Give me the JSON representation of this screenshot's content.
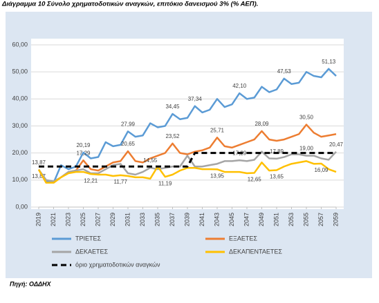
{
  "chart_data": {
    "type": "line",
    "title": "Διάγραμμα 10 Σύνολο χρηματοδοτικών αναγκών, επιτόκιο δανεισμού 3% (% ΑΕΠ).",
    "source": "Πηγή: ΟΔΔΗΧ",
    "x": [
      2019,
      2020,
      2021,
      2022,
      2023,
      2024,
      2025,
      2026,
      2027,
      2028,
      2029,
      2030,
      2031,
      2032,
      2033,
      2034,
      2035,
      2036,
      2037,
      2038,
      2039,
      2040,
      2041,
      2042,
      2043,
      2044,
      2045,
      2046,
      2047,
      2048,
      2049,
      2050,
      2051,
      2052,
      2053,
      2054,
      2055,
      2056,
      2057,
      2058,
      2059
    ],
    "xlim": [
      2019,
      2059
    ],
    "xticks": [
      2019,
      2021,
      2023,
      2025,
      2027,
      2029,
      2031,
      2033,
      2035,
      2037,
      2039,
      2041,
      2043,
      2045,
      2047,
      2049,
      2051,
      2053,
      2055,
      2057,
      2059
    ],
    "ylim": [
      0,
      60
    ],
    "yticks": [
      {
        "value": 0,
        "label": "0,00"
      },
      {
        "value": 10,
        "label": "10,00"
      },
      {
        "value": 20,
        "label": "20,00"
      },
      {
        "value": 30,
        "label": "30,00"
      },
      {
        "value": 40,
        "label": "40,00"
      },
      {
        "value": 50,
        "label": "50,00"
      },
      {
        "value": 60,
        "label": "60,00"
      }
    ],
    "grid": true,
    "series": [
      {
        "name": "ΤΡΙΕΤΕΣ",
        "color": "#5b9bd5",
        "line_style": "solid",
        "values": [
          13.87,
          9.5,
          9,
          15.5,
          14,
          15,
          20.19,
          18,
          18.5,
          24,
          22.5,
          23,
          27.99,
          26,
          26.5,
          31,
          29.5,
          30,
          34.45,
          32.5,
          33,
          37.34,
          35,
          36,
          40,
          37,
          38,
          42.1,
          40,
          40.5,
          44.5,
          42.5,
          43.5,
          47.53,
          45.5,
          46,
          50,
          48.5,
          48,
          51.13,
          48.5
        ],
        "value_labels": [
          "13,87",
          null,
          null,
          null,
          null,
          null,
          "20,19",
          null,
          null,
          null,
          null,
          null,
          "27,99",
          null,
          null,
          null,
          null,
          null,
          "34,45",
          null,
          null,
          "37,34",
          null,
          null,
          null,
          null,
          null,
          "42,10",
          null,
          null,
          null,
          null,
          null,
          "47,53",
          null,
          null,
          null,
          null,
          null,
          "51,13",
          null
        ]
      },
      {
        "name": "ΕΞΑΕΤΕΣ",
        "color": "#ed7d31",
        "line_style": "solid",
        "values": [
          13.87,
          9,
          9,
          11,
          13,
          13.5,
          17.29,
          14,
          13.5,
          15,
          16.5,
          17,
          20.65,
          17,
          16.5,
          18,
          19,
          20,
          23.52,
          20,
          19.5,
          20.5,
          21,
          22,
          25.71,
          22.5,
          22,
          23,
          24,
          25,
          28.09,
          25,
          24.5,
          25,
          26,
          27,
          30.5,
          27.5,
          26,
          26.5,
          27
        ],
        "value_labels": [
          "13,87",
          null,
          null,
          null,
          null,
          null,
          "17,29",
          null,
          null,
          null,
          null,
          null,
          "20,65",
          null,
          null,
          null,
          null,
          null,
          "23,52",
          null,
          null,
          null,
          null,
          null,
          "25,71",
          null,
          null,
          null,
          null,
          null,
          "28,09",
          null,
          null,
          null,
          null,
          null,
          "30,50",
          null,
          null,
          null,
          null
        ]
      },
      {
        "name": "ΔΕΚΑΕΤΕΣ",
        "color": "#a5a5a5",
        "line_style": "solid",
        "values": [
          13.87,
          10,
          9.5,
          11,
          13,
          13.5,
          14,
          12.5,
          12.5,
          14,
          15.5,
          16,
          12.5,
          12,
          13,
          14.55,
          14,
          14.5,
          15,
          15,
          19,
          15,
          15,
          15.5,
          16,
          17,
          17,
          17.29,
          17,
          17.5,
          20.5,
          18,
          17.89,
          18.5,
          19.5,
          19.5,
          19,
          19,
          18,
          17.5,
          20.47
        ],
        "value_labels": [
          null,
          null,
          null,
          null,
          null,
          null,
          null,
          null,
          null,
          null,
          null,
          null,
          null,
          null,
          null,
          "14,55",
          null,
          null,
          null,
          null,
          null,
          null,
          null,
          null,
          null,
          null,
          null,
          "17,29",
          null,
          null,
          null,
          null,
          "17,89",
          null,
          null,
          null,
          "19,00",
          null,
          null,
          null,
          "20,47"
        ]
      },
      {
        "name": "ΔΕΚΑΠΕΝΤΑΕΤΕΣ",
        "color": "#ffc000",
        "line_style": "solid",
        "values": [
          13.87,
          9,
          9,
          11,
          12.5,
          13,
          13,
          12.21,
          12,
          12,
          11.5,
          11.77,
          11.5,
          11,
          11,
          10.5,
          15,
          11.19,
          12,
          13.5,
          14.5,
          14.5,
          14,
          14,
          13.95,
          13,
          13,
          13,
          12.5,
          12.65,
          16.5,
          13.5,
          13.65,
          15,
          16,
          16.5,
          17,
          16,
          16.09,
          14,
          13
        ],
        "value_labels": [
          null,
          null,
          null,
          null,
          null,
          null,
          null,
          "12,21",
          null,
          null,
          null,
          "11,77",
          null,
          null,
          null,
          null,
          null,
          "11,19",
          null,
          null,
          null,
          null,
          null,
          null,
          "13,95",
          null,
          null,
          null,
          null,
          "12,65",
          null,
          null,
          "13,65",
          null,
          null,
          null,
          null,
          null,
          "16,09",
          null,
          null
        ]
      },
      {
        "name": "όριο χρηματοδοτικών αναγκών",
        "color": "#000000",
        "line_style": "dashed",
        "values": [
          15,
          15,
          15,
          15,
          15,
          15,
          15,
          15,
          15,
          15,
          15,
          15,
          15,
          15,
          15,
          15,
          15,
          15,
          15,
          15,
          15,
          20,
          20,
          20,
          20,
          20,
          20,
          20,
          20,
          20,
          20,
          20,
          20,
          20,
          20,
          20,
          20,
          20,
          20,
          20,
          20
        ]
      }
    ]
  }
}
